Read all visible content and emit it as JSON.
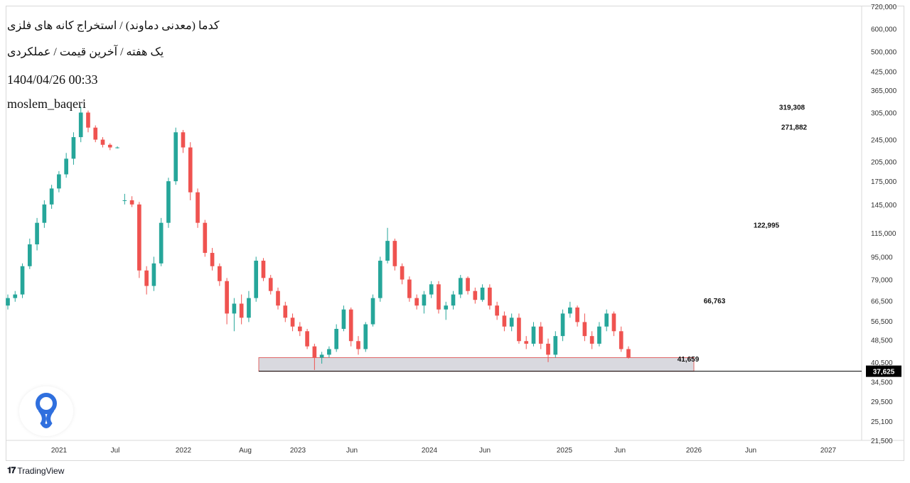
{
  "header": {
    "title": "کدما (معدنی دماوند) / استخراج کانه های فلزی",
    "subtitle": "یک هفته / آخرین قیمت / عملکردی",
    "datetime": "1404/04/26 00:33",
    "author": "moslem_baqeri"
  },
  "brand": {
    "name": "TradingView"
  },
  "colors": {
    "up": "#26a69a",
    "down": "#ef5350",
    "zone_fill": "#d9d9df",
    "zone_border": "#e06666",
    "price_line": "#000000"
  },
  "chart_data": {
    "type": "candlestick",
    "title": "کدما (معدنی دماوند) / استخراج کانه های فلزی",
    "x_axis": {
      "tick_labels": [
        "2021",
        "Jul",
        "2022",
        "Aug",
        "2023",
        "Jun",
        "2024",
        "Jun",
        "2025",
        "Jun",
        "2026",
        "Jun",
        "2027"
      ]
    },
    "y_axis": {
      "scale": "log",
      "ylim": [
        21500,
        720000
      ],
      "tick_labels": [
        "720,000",
        "600,000",
        "500,000",
        "425,000",
        "365,000",
        "305,000",
        "245,000",
        "205,000",
        "175,000",
        "145,000",
        "115,000",
        "95,000",
        "79,000",
        "66,500",
        "56,500",
        "48,500",
        "40,500",
        "34,500",
        "29,500",
        "25,100",
        "21,500"
      ]
    },
    "last_price": {
      "value": 37625,
      "label": "37,625"
    },
    "annotations": [
      {
        "label": "319,308",
        "value": 319308
      },
      {
        "label": "271,882",
        "value": 271882
      },
      {
        "label": "122,995",
        "value": 122995
      },
      {
        "label": "66,763",
        "value": 66763
      },
      {
        "label": "41,659",
        "value": 41659
      }
    ],
    "support_zone": {
      "low": 37625,
      "high": 42000,
      "from": "2022-09",
      "to": "2026-01"
    },
    "series": [
      {
        "values": [
          [
            64000,
            70000,
            62000,
            68000
          ],
          [
            68000,
            72000,
            66000,
            70000
          ],
          [
            70000,
            90000,
            68000,
            88000
          ],
          [
            88000,
            110000,
            86000,
            105000
          ],
          [
            105000,
            130000,
            100000,
            125000
          ],
          [
            125000,
            150000,
            120000,
            145000
          ],
          [
            145000,
            170000,
            140000,
            165000
          ],
          [
            165000,
            190000,
            160000,
            185000
          ],
          [
            185000,
            220000,
            180000,
            210000
          ],
          [
            210000,
            260000,
            200000,
            250000
          ],
          [
            250000,
            320000,
            240000,
            305000
          ],
          [
            305000,
            310000,
            260000,
            270000
          ],
          [
            270000,
            275000,
            240000,
            245000
          ],
          [
            245000,
            250000,
            230000,
            235000
          ],
          [
            235000,
            238000,
            225000,
            230000
          ],
          [
            230000,
            232000,
            228000,
            230000
          ],
          [
            150000,
            158000,
            145000,
            150000
          ],
          [
            150000,
            155000,
            142000,
            145000
          ],
          [
            145000,
            148000,
            80000,
            85000
          ],
          [
            85000,
            88000,
            70000,
            75000
          ],
          [
            75000,
            95000,
            72000,
            90000
          ],
          [
            90000,
            130000,
            88000,
            125000
          ],
          [
            125000,
            180000,
            120000,
            175000
          ],
          [
            175000,
            270000,
            170000,
            260000
          ],
          [
            260000,
            265000,
            220000,
            230000
          ],
          [
            230000,
            240000,
            150000,
            160000
          ],
          [
            160000,
            165000,
            120000,
            125000
          ],
          [
            125000,
            128000,
            95000,
            98000
          ],
          [
            98000,
            102000,
            85000,
            88000
          ],
          [
            88000,
            90000,
            75000,
            78000
          ],
          [
            78000,
            80000,
            55000,
            60000
          ],
          [
            60000,
            68000,
            52000,
            65000
          ],
          [
            65000,
            70000,
            55000,
            58000
          ],
          [
            58000,
            72000,
            56000,
            68000
          ],
          [
            68000,
            95000,
            66000,
            92000
          ],
          [
            92000,
            94000,
            78000,
            80000
          ],
          [
            80000,
            82000,
            70000,
            72000
          ],
          [
            72000,
            74000,
            62000,
            64000
          ],
          [
            64000,
            66000,
            56000,
            58000
          ],
          [
            58000,
            60000,
            52000,
            54000
          ],
          [
            54000,
            56000,
            50000,
            52000
          ],
          [
            52000,
            53000,
            45000,
            46000
          ],
          [
            46000,
            47000,
            38000,
            42000
          ],
          [
            42000,
            44000,
            40000,
            43000
          ],
          [
            43000,
            46000,
            42000,
            45000
          ],
          [
            45000,
            55000,
            44000,
            53000
          ],
          [
            53000,
            64000,
            52000,
            62000
          ],
          [
            62000,
            63000,
            46000,
            48000
          ],
          [
            48000,
            50000,
            43000,
            45000
          ],
          [
            45000,
            56000,
            44000,
            55000
          ],
          [
            55000,
            70000,
            54000,
            68000
          ],
          [
            68000,
            95000,
            66000,
            92000
          ],
          [
            92000,
            120000,
            90000,
            108000
          ],
          [
            108000,
            110000,
            85000,
            88000
          ],
          [
            88000,
            90000,
            76000,
            79000
          ],
          [
            79000,
            81000,
            66000,
            68000
          ],
          [
            68000,
            70000,
            62000,
            64000
          ],
          [
            64000,
            72000,
            60000,
            70000
          ],
          [
            70000,
            78000,
            68000,
            76000
          ],
          [
            76000,
            78000,
            60000,
            62000
          ],
          [
            62000,
            66000,
            57000,
            64000
          ],
          [
            64000,
            72000,
            62000,
            70000
          ],
          [
            70000,
            82000,
            68000,
            80000
          ],
          [
            80000,
            81000,
            70000,
            72000
          ],
          [
            72000,
            74000,
            65000,
            67000
          ],
          [
            67000,
            76000,
            66000,
            74000
          ],
          [
            74000,
            76000,
            62000,
            64000
          ],
          [
            64000,
            66000,
            57000,
            59000
          ],
          [
            59000,
            61000,
            52000,
            54000
          ],
          [
            54000,
            60000,
            52000,
            58000
          ],
          [
            58000,
            60000,
            47000,
            48000
          ],
          [
            48000,
            50000,
            45000,
            47000
          ],
          [
            47000,
            56000,
            46000,
            54000
          ],
          [
            54000,
            56000,
            45000,
            47000
          ],
          [
            47000,
            49000,
            40500,
            43000
          ],
          [
            43000,
            52000,
            42000,
            50000
          ],
          [
            50000,
            62000,
            48000,
            60000
          ],
          [
            60000,
            66000,
            58000,
            63000
          ],
          [
            63000,
            64000,
            54000,
            56000
          ],
          [
            56000,
            60000,
            48000,
            50000
          ],
          [
            50000,
            52000,
            45000,
            47000
          ],
          [
            47000,
            56000,
            46000,
            54000
          ],
          [
            54000,
            62000,
            52000,
            60000
          ],
          [
            60000,
            61000,
            50000,
            52000
          ],
          [
            52000,
            54000,
            44000,
            45000
          ],
          [
            45000,
            46000,
            41659,
            42000
          ]
        ]
      }
    ]
  }
}
